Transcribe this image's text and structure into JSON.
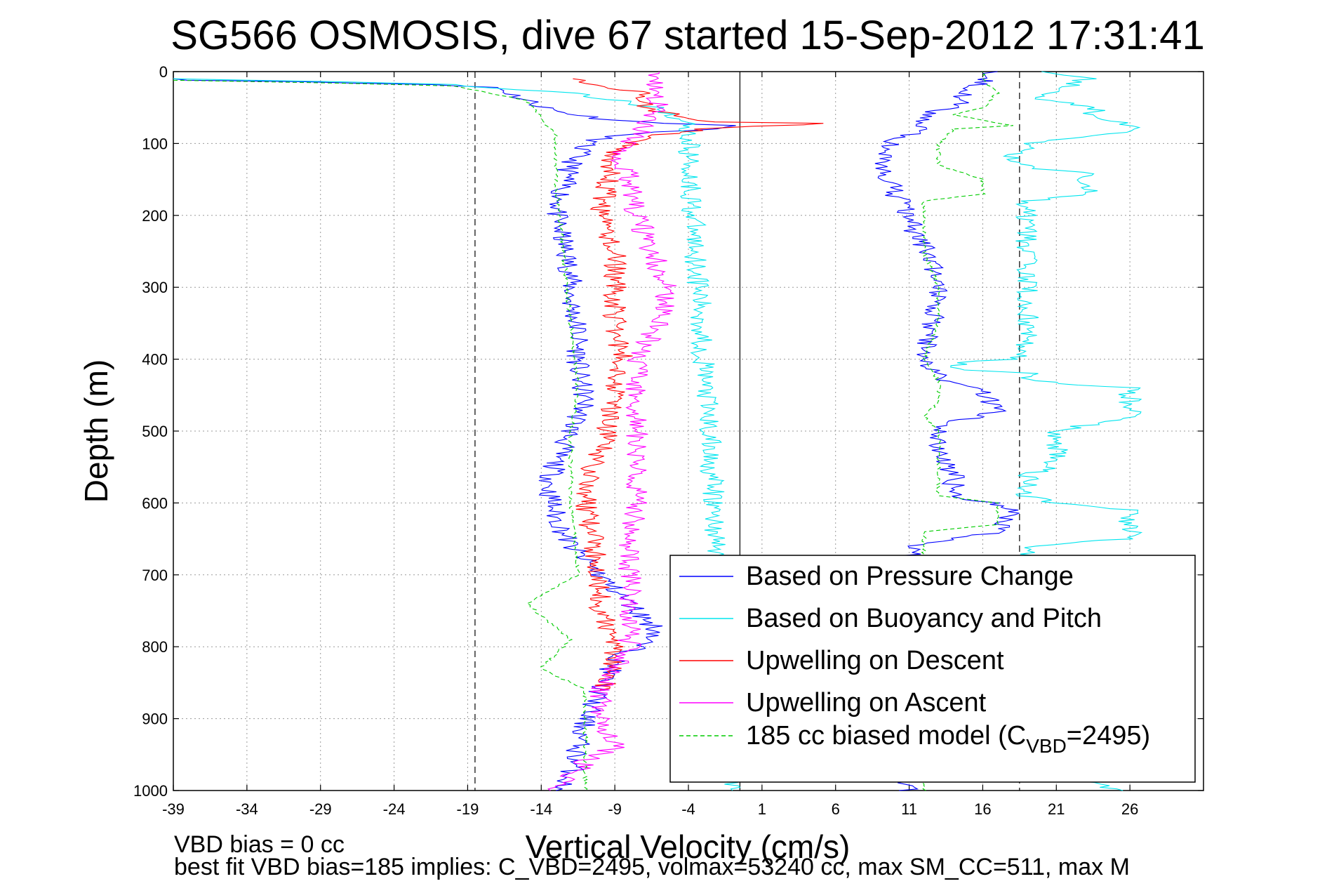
{
  "chart_data": {
    "type": "line",
    "title": "SG566 OSMOSIS, dive 67 started 15-Sep-2012 17:31:41",
    "xlabel": "Vertical Velocity (cm/s)",
    "ylabel": "Depth (m)",
    "xlim": [
      -39,
      31
    ],
    "ylim": [
      1000,
      0
    ],
    "y_reversed": true,
    "grid": true,
    "legend_position": "bottom-right",
    "x_ticks": [
      -39,
      -34,
      -29,
      -24,
      -19,
      -14,
      -9,
      -4,
      1,
      6,
      11,
      16,
      21,
      26
    ],
    "y_ticks": [
      0,
      100,
      200,
      300,
      400,
      500,
      600,
      700,
      800,
      900,
      1000
    ],
    "reference_lines_x": [
      -18.5,
      -0.5,
      18.5
    ],
    "footer_lines": [
      "VBD bias = 0 cc",
      "best fit VBD bias=185 implies: C_VBD=2495, volmax=53240 cc, max SM_CC=511, max M"
    ],
    "legend_sub": {
      "main": "185 cc biased model (C",
      "sub": "VBD",
      "tail": "=2495)"
    },
    "series": [
      {
        "name": "Based on Pressure Change",
        "color": "#0000ff",
        "dash": "",
        "descent": [
          [
            -39,
            10
          ],
          [
            -38,
            12
          ],
          [
            -30,
            14
          ],
          [
            -22,
            18
          ],
          [
            -17,
            22
          ],
          [
            -15,
            40
          ],
          [
            -13,
            55
          ],
          [
            -10,
            65
          ],
          [
            -6,
            72
          ],
          [
            0,
            75
          ],
          [
            -4,
            82
          ],
          [
            -9,
            88
          ],
          [
            -11,
            100
          ],
          [
            -12,
            130
          ],
          [
            -12.5,
            160
          ],
          [
            -13,
            200
          ],
          [
            -12.5,
            240
          ],
          [
            -12,
            280
          ],
          [
            -12,
            320
          ],
          [
            -11.5,
            360
          ],
          [
            -11.5,
            420
          ],
          [
            -11,
            460
          ],
          [
            -12,
            500
          ],
          [
            -13,
            540
          ],
          [
            -13.5,
            580
          ],
          [
            -13,
            620
          ],
          [
            -12,
            660
          ],
          [
            -10,
            700
          ],
          [
            -8,
            740
          ],
          [
            -6,
            780
          ],
          [
            -9,
            820
          ],
          [
            -10,
            860
          ],
          [
            -11,
            900
          ],
          [
            -11.5,
            940
          ],
          [
            -12,
            980
          ],
          [
            -13,
            1000
          ]
        ],
        "ascent": [
          [
            11,
            1000
          ],
          [
            10.5,
            950
          ],
          [
            11,
            900
          ],
          [
            11,
            860
          ],
          [
            11,
            820
          ],
          [
            11,
            780
          ],
          [
            11,
            700
          ],
          [
            11,
            660
          ],
          [
            17,
            640
          ],
          [
            18,
            610
          ],
          [
            17,
            600
          ],
          [
            14,
            595
          ],
          [
            14,
            560
          ],
          [
            13,
            520
          ],
          [
            13,
            490
          ],
          [
            16,
            480
          ],
          [
            17,
            470
          ],
          [
            16,
            440
          ],
          [
            14,
            435
          ],
          [
            13,
            420
          ],
          [
            12,
            400
          ],
          [
            12.5,
            360
          ],
          [
            13,
            320
          ],
          [
            13,
            290
          ],
          [
            12.5,
            260
          ],
          [
            11.5,
            230
          ],
          [
            11,
            200
          ],
          [
            10,
            170
          ],
          [
            9,
            130
          ],
          [
            9,
            110
          ],
          [
            10,
            95
          ],
          [
            12,
            80
          ],
          [
            12,
            60
          ],
          [
            14,
            50
          ],
          [
            15,
            30
          ],
          [
            16,
            15
          ],
          [
            16,
            5
          ],
          [
            17,
            0
          ]
        ]
      },
      {
        "name": "Based on Buoyancy and Pitch",
        "color": "#00e5ee",
        "dash": "",
        "descent": [
          [
            -39,
            10
          ],
          [
            -28,
            14
          ],
          [
            -20,
            18
          ],
          [
            -12,
            30
          ],
          [
            -6,
            50
          ],
          [
            -4,
            75
          ],
          [
            -4,
            100
          ],
          [
            -3.7,
            200
          ],
          [
            -3.3,
            300
          ],
          [
            -3.0,
            400
          ],
          [
            -2.6,
            500
          ],
          [
            -2.3,
            600
          ],
          [
            -2.0,
            700
          ],
          [
            -1.7,
            800
          ],
          [
            -1.3,
            900
          ],
          [
            -1.0,
            1000
          ]
        ],
        "ascent": [
          [
            25,
            1000
          ],
          [
            22,
            980
          ],
          [
            19,
            960
          ],
          [
            19,
            900
          ],
          [
            19,
            800
          ],
          [
            19,
            700
          ],
          [
            19,
            660
          ],
          [
            26,
            650
          ],
          [
            26,
            610
          ],
          [
            21,
            600
          ],
          [
            19,
            590
          ],
          [
            19,
            560
          ],
          [
            21,
            550
          ],
          [
            21,
            500
          ],
          [
            26,
            480
          ],
          [
            26,
            440
          ],
          [
            19,
            430
          ],
          [
            19,
            420
          ],
          [
            15,
            415
          ],
          [
            14,
            405
          ],
          [
            18,
            400
          ],
          [
            19,
            380
          ],
          [
            19,
            300
          ],
          [
            19,
            200
          ],
          [
            19,
            180
          ],
          [
            23,
            170
          ],
          [
            23,
            140
          ],
          [
            19,
            135
          ],
          [
            18,
            120
          ],
          [
            19,
            100
          ],
          [
            27,
            80
          ],
          [
            23,
            60
          ],
          [
            24,
            50
          ],
          [
            20,
            40
          ],
          [
            21,
            30
          ],
          [
            23,
            10
          ],
          [
            22,
            5
          ],
          [
            20,
            0
          ]
        ]
      },
      {
        "name": "Upwelling on Descent",
        "color": "#ff0000",
        "dash": "",
        "descent": [
          [
            -12,
            10
          ],
          [
            -7,
            30
          ],
          [
            -7,
            50
          ],
          [
            -3,
            70
          ],
          [
            5,
            72
          ],
          [
            -3,
            80
          ],
          [
            -7,
            90
          ],
          [
            -9,
            110
          ],
          [
            -9.5,
            150
          ],
          [
            -10,
            200
          ],
          [
            -9,
            250
          ],
          [
            -9,
            300
          ],
          [
            -9,
            350
          ],
          [
            -8.5,
            400
          ],
          [
            -9,
            450
          ],
          [
            -9.5,
            500
          ],
          [
            -10.5,
            550
          ],
          [
            -11,
            600
          ],
          [
            -10.5,
            650
          ],
          [
            -10,
            700
          ],
          [
            -10,
            750
          ],
          [
            -9,
            800
          ],
          [
            -9,
            830
          ],
          [
            -10,
            860
          ]
        ],
        "ascent": []
      },
      {
        "name": "Upwelling on Ascent",
        "color": "#ff00ff",
        "dash": "",
        "descent": [],
        "ascent": [
          [
            -13,
            1000
          ],
          [
            -11,
            960
          ],
          [
            -9,
            940
          ],
          [
            -10,
            900
          ],
          [
            -10,
            860
          ],
          [
            -8,
            800
          ],
          [
            -8,
            760
          ],
          [
            -8,
            700
          ],
          [
            -8,
            650
          ],
          [
            -7.5,
            600
          ],
          [
            -7.5,
            550
          ],
          [
            -7.5,
            500
          ],
          [
            -7.5,
            450
          ],
          [
            -7.5,
            400
          ],
          [
            -6,
            350
          ],
          [
            -5.5,
            300
          ],
          [
            -6.5,
            250
          ],
          [
            -7.5,
            200
          ],
          [
            -8,
            150
          ],
          [
            -9,
            110
          ],
          [
            -7,
            80
          ],
          [
            -6,
            50
          ],
          [
            -6.5,
            20
          ],
          [
            -6,
            5
          ],
          [
            -6,
            0
          ]
        ]
      },
      {
        "name": "185 cc biased model",
        "color": "#00cc00",
        "dash": "6,4",
        "descent": [
          [
            -39,
            12
          ],
          [
            -28,
            16
          ],
          [
            -20,
            20
          ],
          [
            -15,
            40
          ],
          [
            -14,
            65
          ],
          [
            -13,
            90
          ],
          [
            -13,
            150
          ],
          [
            -12.5,
            250
          ],
          [
            -12,
            350
          ],
          [
            -11.5,
            450
          ],
          [
            -12,
            500
          ],
          [
            -12,
            600
          ],
          [
            -11.5,
            700
          ],
          [
            -15,
            740
          ],
          [
            -12,
            790
          ],
          [
            -14,
            830
          ],
          [
            -11,
            860
          ],
          [
            -11,
            900
          ],
          [
            -11,
            950
          ],
          [
            -11,
            1000
          ]
        ],
        "ascent": [
          [
            12,
            1000
          ],
          [
            12,
            900
          ],
          [
            12,
            800
          ],
          [
            12,
            700
          ],
          [
            12,
            640
          ],
          [
            17,
            630
          ],
          [
            17,
            600
          ],
          [
            13,
            590
          ],
          [
            13,
            560
          ],
          [
            13,
            520
          ],
          [
            13,
            500
          ],
          [
            12,
            480
          ],
          [
            13,
            460
          ],
          [
            13,
            430
          ],
          [
            12,
            400
          ],
          [
            13,
            350
          ],
          [
            13,
            300
          ],
          [
            12,
            250
          ],
          [
            12,
            200
          ],
          [
            12,
            180
          ],
          [
            16,
            170
          ],
          [
            16,
            150
          ],
          [
            13,
            130
          ],
          [
            13,
            100
          ],
          [
            14,
            80
          ],
          [
            18,
            75
          ],
          [
            14,
            60
          ],
          [
            16,
            50
          ],
          [
            17,
            30
          ],
          [
            16,
            10
          ],
          [
            16,
            0
          ]
        ]
      }
    ]
  }
}
